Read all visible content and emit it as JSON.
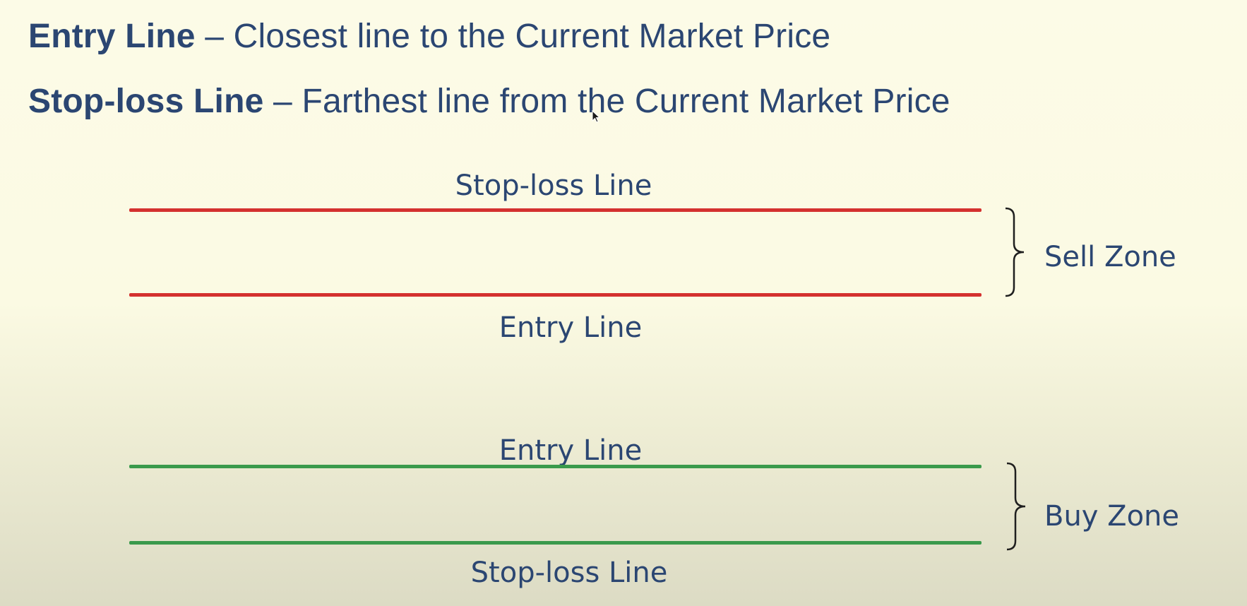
{
  "definitions": [
    {
      "term": "Entry Line",
      "separator": " – ",
      "description": "Closest line to the Current Market Price"
    },
    {
      "term": "Stop-loss Line",
      "separator": " – ",
      "description": "Farthest line from the Current Market Price"
    }
  ],
  "sell_zone": {
    "label": "Sell Zone",
    "top_line_label": "Stop-loss Line",
    "bottom_line_label": "Entry Line",
    "line_color": "#d4312f"
  },
  "buy_zone": {
    "label": "Buy Zone",
    "top_line_label": "Entry Line",
    "bottom_line_label": "Stop-loss Line",
    "line_color": "#3a9a4c"
  },
  "text_color": "#2b4672",
  "icons": {
    "pointer": "mouse-pointer-icon"
  }
}
